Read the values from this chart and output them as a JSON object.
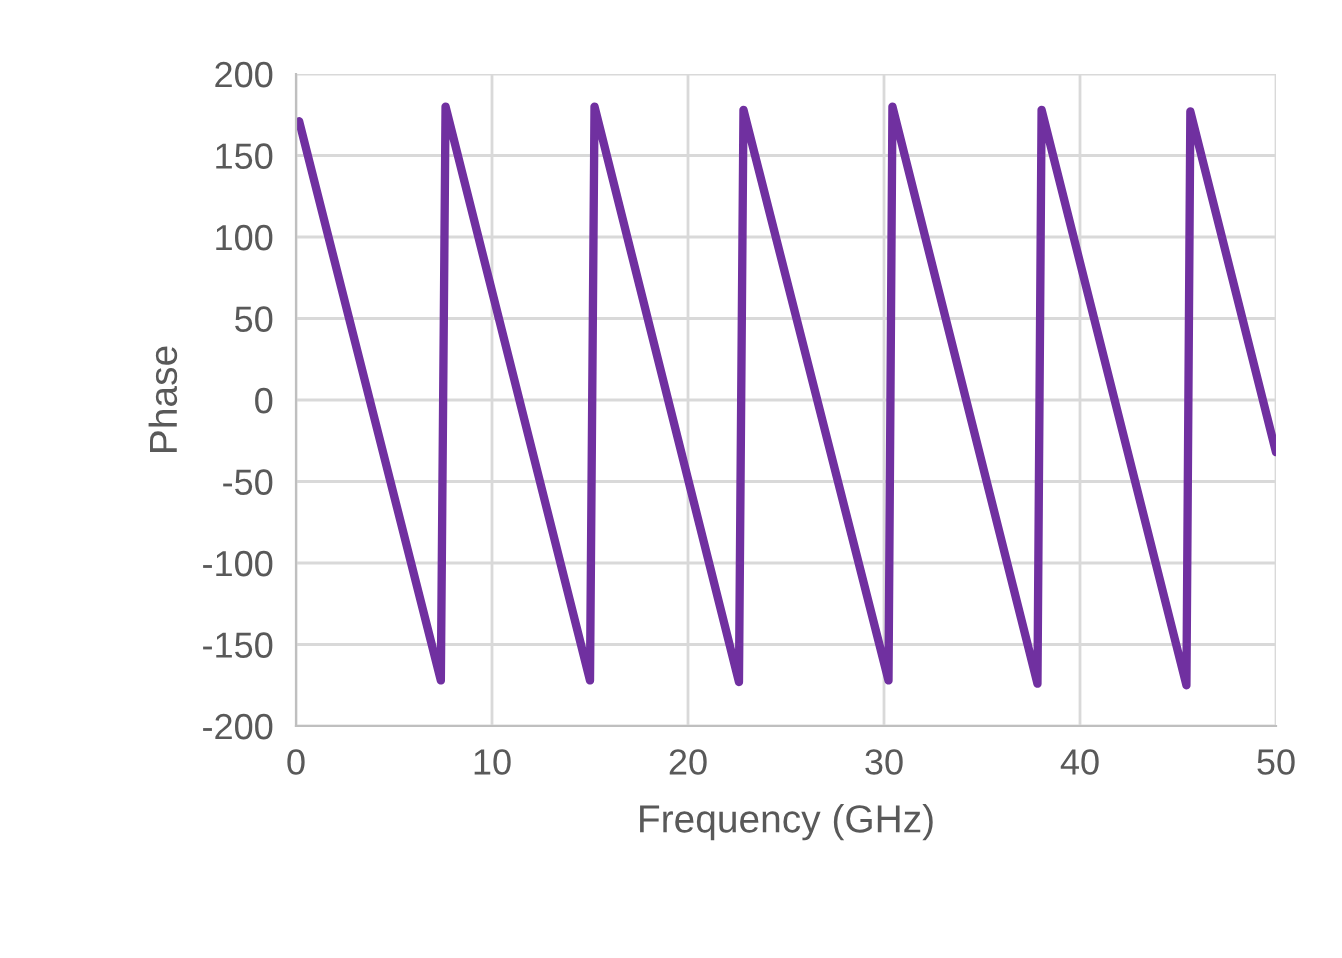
{
  "chart_data": {
    "type": "line",
    "xlabel": "Frequency (GHz)",
    "ylabel": "Phase",
    "xlim": [
      0,
      50
    ],
    "xticks": [
      0,
      10,
      20,
      30,
      40,
      50
    ],
    "ylim": [
      -200,
      200
    ],
    "yticks": [
      -200,
      -150,
      -100,
      -50,
      0,
      50,
      100,
      150,
      200
    ],
    "grid": true,
    "marker": "none",
    "line_style": "solid",
    "series": [
      {
        "color": "#7030a0",
        "x": [
          0.16,
          7.39,
          7.63,
          15.0,
          15.23,
          22.6,
          22.83,
          30.23,
          30.43,
          37.83,
          38.04,
          45.43,
          45.63,
          50
        ],
        "values": [
          171,
          -172,
          180,
          -172,
          180,
          -173,
          178,
          -172,
          180,
          -174,
          178,
          -175,
          177,
          -32
        ]
      }
    ]
  }
}
